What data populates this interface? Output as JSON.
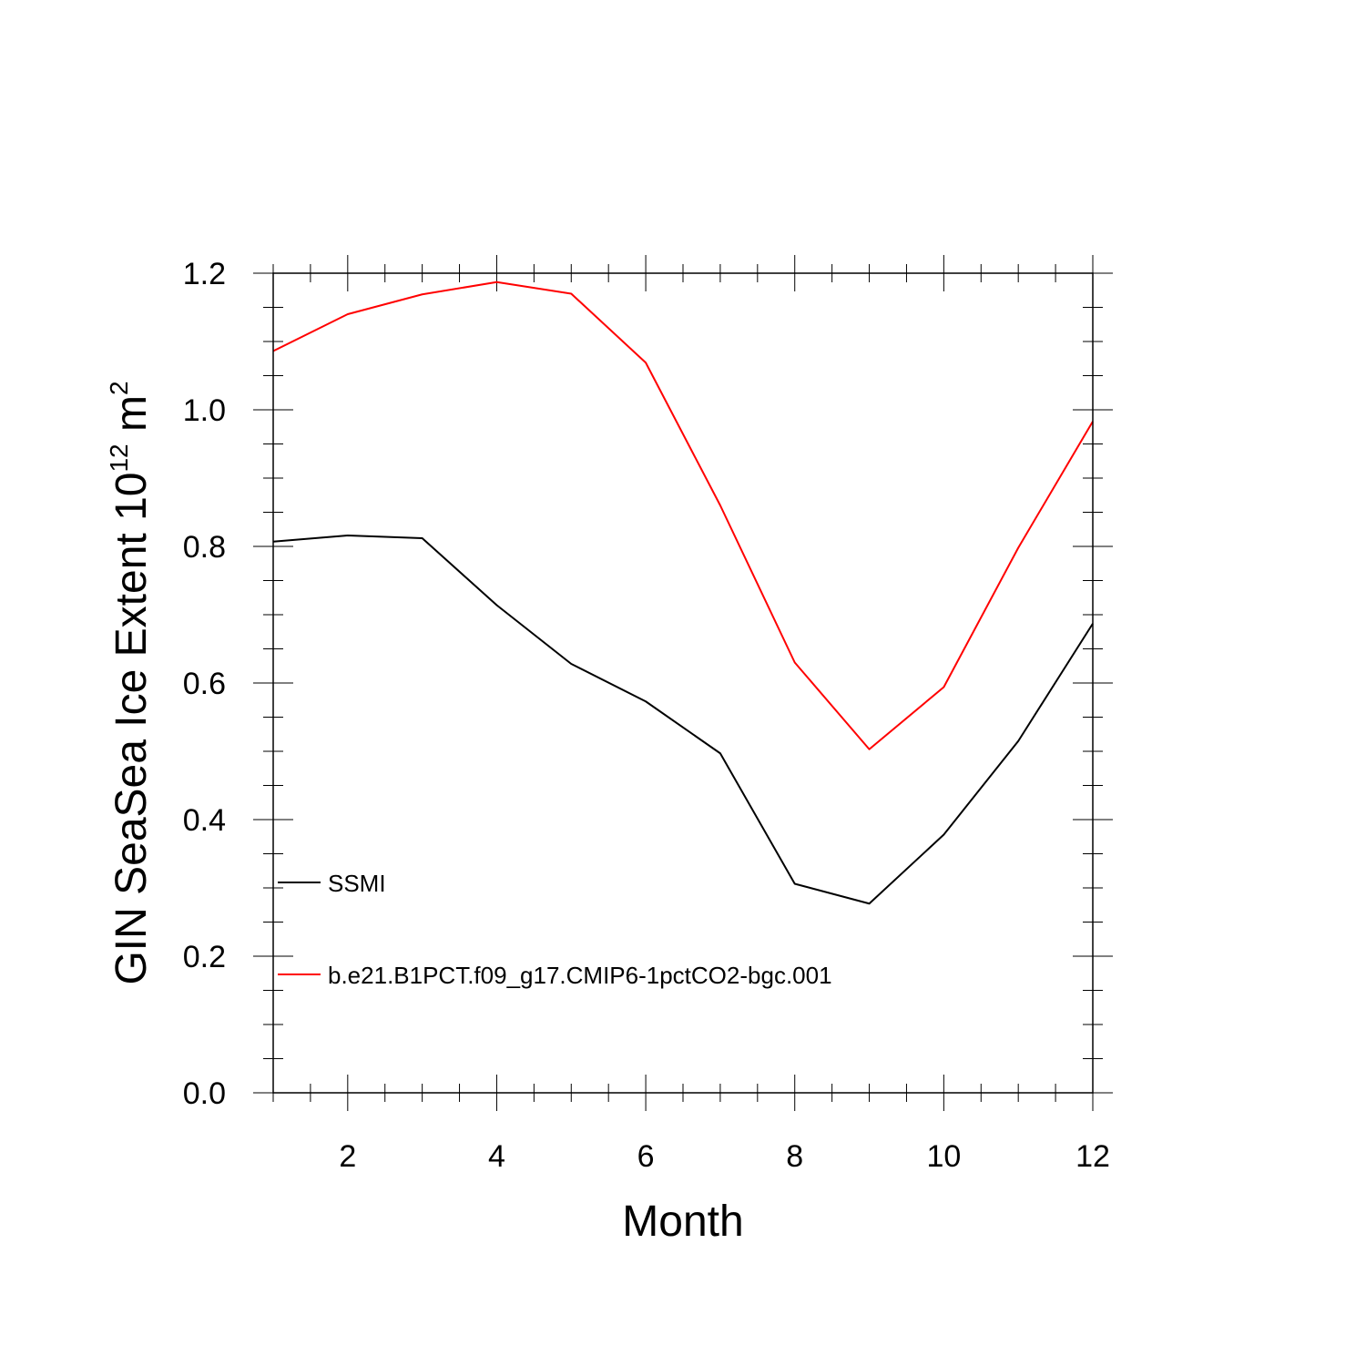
{
  "chart_data": {
    "type": "line",
    "xlabel": "Month",
    "ylabel": {
      "prefix": "GIN SeaSea Ice Extent 10",
      "exp": "12",
      "mid": " m",
      "exp2": "2"
    },
    "xlim": [
      1,
      12
    ],
    "ylim": [
      0.0,
      1.2
    ],
    "x_ticks": [
      2,
      4,
      6,
      8,
      10,
      12
    ],
    "x_tick_labels": [
      "2",
      "4",
      "6",
      "8",
      "10",
      "12"
    ],
    "y_ticks": [
      0.0,
      0.2,
      0.4,
      0.6,
      0.8,
      1.0,
      1.2
    ],
    "y_tick_labels": [
      "0.0",
      "0.2",
      "0.4",
      "0.6",
      "0.8",
      "1.0",
      "1.2"
    ],
    "grid": false,
    "legend_position": "lower-left",
    "x": [
      1,
      2,
      3,
      4,
      5,
      6,
      7,
      8,
      9,
      10,
      11,
      12
    ],
    "series": [
      {
        "name": "SSMI",
        "color": "#000000",
        "values": [
          0.807,
          0.816,
          0.812,
          0.714,
          0.628,
          0.573,
          0.497,
          0.306,
          0.277,
          0.378,
          0.515,
          0.687
        ]
      },
      {
        "name": "b.e21.B1PCT.f09_g17.CMIP6-1pctCO2-bgc.001",
        "color": "#ff0000",
        "values": [
          1.086,
          1.14,
          1.169,
          1.187,
          1.17,
          1.069,
          0.86,
          0.63,
          0.503,
          0.594,
          0.798,
          0.983
        ]
      }
    ]
  }
}
